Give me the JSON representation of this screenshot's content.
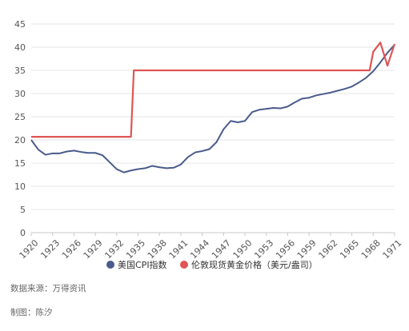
{
  "chart_data": {
    "type": "line",
    "x_ticks": [
      1920,
      1923,
      1926,
      1929,
      1932,
      1935,
      1938,
      1941,
      1944,
      1947,
      1950,
      1953,
      1956,
      1959,
      1962,
      1965,
      1968,
      1971
    ],
    "xlim": [
      1920,
      1971
    ],
    "ylim": [
      0,
      45
    ],
    "y_ticks": [
      0,
      5,
      10,
      15,
      20,
      25,
      30,
      35,
      40,
      45
    ],
    "grid": "horizontal",
    "legend_position": "bottom",
    "series": [
      {
        "name": "美国CPI指数",
        "color": "#4a5b8c",
        "x": [
          1920,
          1921,
          1922,
          1923,
          1924,
          1925,
          1926,
          1927,
          1928,
          1929,
          1930,
          1931,
          1932,
          1933,
          1934,
          1935,
          1936,
          1937,
          1938,
          1939,
          1940,
          1941,
          1942,
          1943,
          1944,
          1945,
          1946,
          1947,
          1948,
          1949,
          1950,
          1951,
          1952,
          1953,
          1954,
          1955,
          1956,
          1957,
          1958,
          1959,
          1960,
          1961,
          1962,
          1963,
          1964,
          1965,
          1966,
          1967,
          1968,
          1969,
          1970,
          1971
        ],
        "values": [
          20.0,
          17.9,
          16.8,
          17.1,
          17.1,
          17.5,
          17.7,
          17.4,
          17.2,
          17.2,
          16.7,
          15.2,
          13.7,
          13.0,
          13.4,
          13.7,
          13.9,
          14.4,
          14.1,
          13.9,
          14.0,
          14.7,
          16.3,
          17.3,
          17.6,
          18.0,
          19.5,
          22.3,
          24.1,
          23.8,
          24.1,
          26.0,
          26.5,
          26.7,
          26.9,
          26.8,
          27.2,
          28.1,
          28.9,
          29.1,
          29.6,
          29.9,
          30.2,
          30.6,
          31.0,
          31.5,
          32.4,
          33.4,
          34.8,
          36.7,
          38.8,
          40.5
        ]
      },
      {
        "name": "伦敦现货黄金价格（美元/盎司）",
        "color": "#e05555",
        "x": [
          1920,
          1934,
          1934.4,
          1935,
          1967,
          1967.5,
          1968,
          1969,
          1970,
          1971
        ],
        "values": [
          20.67,
          20.67,
          35.0,
          35.0,
          35.0,
          35.0,
          39.0,
          41.0,
          36.0,
          40.7
        ]
      }
    ]
  },
  "source_note": "数据来源：万得资讯",
  "maker_note": "制图：陈汐"
}
